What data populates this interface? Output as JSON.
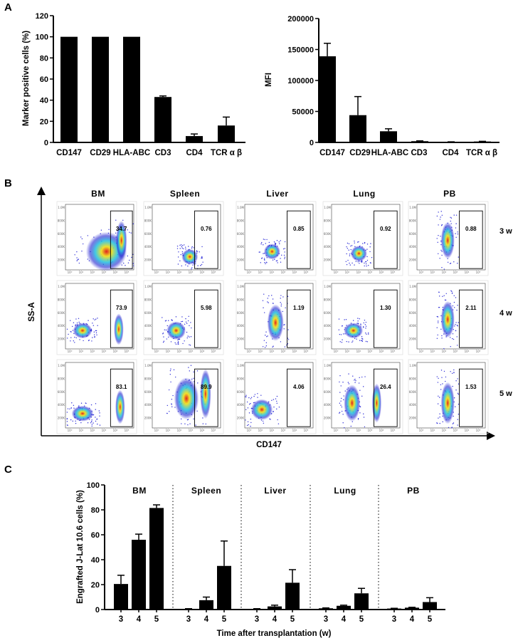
{
  "panels": {
    "a": "A",
    "b": "B",
    "c": "C"
  },
  "colors": {
    "bar": "#000000",
    "density_low": "#2020d0",
    "density_mid": "#20c0e0",
    "density_high": "#f0e020",
    "density_peak": "#e02020"
  },
  "chart_data": [
    {
      "id": "A1",
      "type": "bar",
      "ylabel": "Marker positive cells (%)",
      "xlabel": "",
      "categories": [
        "CD147",
        "CD29",
        "HLA-ABC",
        "CD3",
        "CD4",
        "TCR α β"
      ],
      "values": [
        100,
        100,
        100,
        43,
        6,
        16
      ],
      "errors": [
        0,
        0,
        0,
        1,
        2,
        8
      ],
      "ylim": [
        0,
        120
      ],
      "yticks": [
        "0",
        "20",
        "40",
        "60",
        "80",
        "100",
        "120"
      ]
    },
    {
      "id": "A2",
      "type": "bar",
      "ylabel": "MFI",
      "xlabel": "",
      "categories": [
        "CD147",
        "CD29",
        "HLA-ABC",
        "CD3",
        "CD4",
        "TCR α β"
      ],
      "values": [
        139000,
        44000,
        18000,
        2000,
        800,
        1500
      ],
      "errors": [
        21000,
        30000,
        4000,
        500,
        200,
        300
      ],
      "ylim": [
        0,
        200000
      ],
      "yticks": [
        "0",
        "50000",
        "100000",
        "150000",
        "200000"
      ]
    },
    {
      "id": "B",
      "type": "scatter",
      "xlabel": "CD147",
      "ylabel": "SS-A",
      "columns": [
        "BM",
        "Spleen",
        "Liver",
        "Lung",
        "PB"
      ],
      "rows": [
        "3 w",
        "4 w",
        "5 w"
      ],
      "gate_values": [
        [
          "34.7",
          "0.76",
          "0.85",
          "0.92",
          "0.88"
        ],
        [
          "73.9",
          "5.98",
          "1.19",
          "1.30",
          "2.11"
        ],
        [
          "83.1",
          "89.9",
          "4.06",
          "26.4",
          "1.53"
        ]
      ]
    },
    {
      "id": "C",
      "type": "bar",
      "ylabel": "Engrafted J-Lat 10.6 cells (%)",
      "xlabel": "Time after transplantation (w)",
      "groups": [
        "BM",
        "Spleen",
        "Liver",
        "Lung",
        "PB"
      ],
      "categories": [
        "3",
        "4",
        "5"
      ],
      "series": [
        {
          "name": "BM",
          "values": [
            20.5,
            56,
            81.5
          ],
          "errors": [
            7,
            4.5,
            2.5
          ]
        },
        {
          "name": "Spleen",
          "values": [
            0.5,
            7.5,
            35
          ],
          "errors": [
            0.2,
            2.5,
            20
          ]
        },
        {
          "name": "Liver",
          "values": [
            0.5,
            2.5,
            21.5
          ],
          "errors": [
            0.2,
            1,
            10.5
          ]
        },
        {
          "name": "Lung",
          "values": [
            1,
            3,
            13
          ],
          "errors": [
            0.3,
            0.5,
            4
          ]
        },
        {
          "name": "PB",
          "values": [
            0.8,
            1.5,
            6
          ],
          "errors": [
            0.2,
            0.3,
            3.5
          ]
        }
      ],
      "ylim": [
        0,
        100
      ],
      "yticks": [
        "0",
        "20",
        "40",
        "60",
        "80",
        "100"
      ]
    }
  ]
}
